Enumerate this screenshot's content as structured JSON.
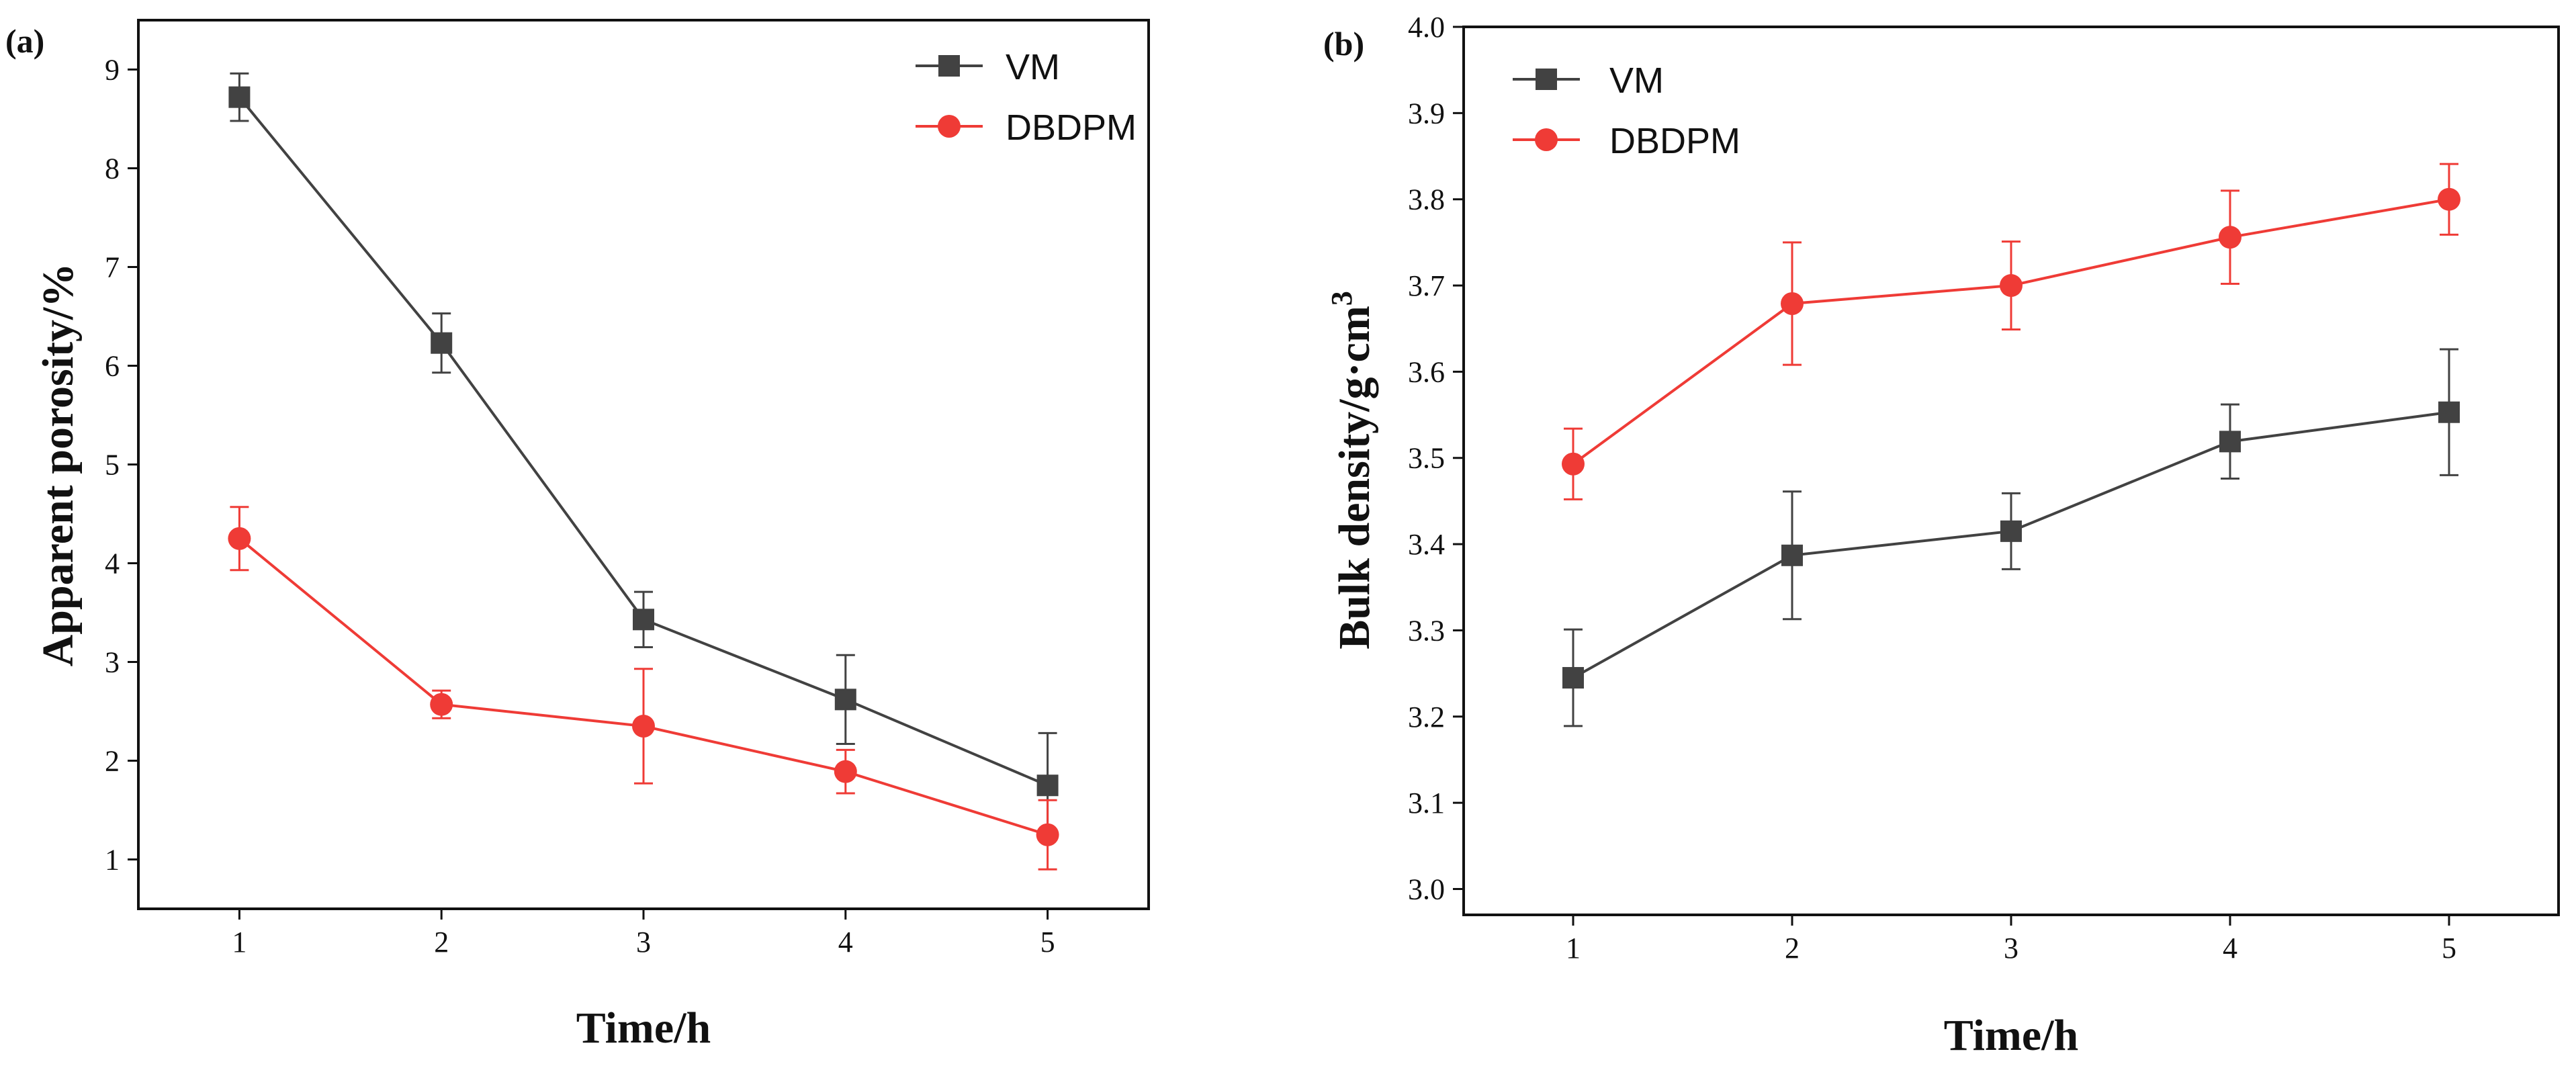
{
  "colors": {
    "vm": "#424242",
    "dbdpm": "#ef3b36",
    "axis": "#111111"
  },
  "chart_data": [
    {
      "panel_label": "(a)",
      "type": "line",
      "title": "",
      "xlabel": "Time/h",
      "ylabel": "Apparent porosity/%",
      "xlim": [
        0.5,
        5.5
      ],
      "ylim": [
        0.5,
        9.5
      ],
      "x_ticks": [
        1,
        2,
        3,
        4,
        5
      ],
      "x_tick_labels": [
        "1",
        "2",
        "3",
        "4",
        "5"
      ],
      "y_ticks": [
        1,
        2,
        3,
        4,
        5,
        6,
        7,
        8,
        9
      ],
      "y_tick_labels": [
        "1",
        "2",
        "3",
        "4",
        "5",
        "6",
        "7",
        "8",
        "9"
      ],
      "legend_position": "top-right",
      "grid": false,
      "series": [
        {
          "name": "VM",
          "color": "#424242",
          "marker": "square",
          "x": [
            1,
            2,
            3,
            4,
            5
          ],
          "values": [
            8.72,
            6.23,
            3.43,
            2.62,
            1.75
          ],
          "errors": [
            0.24,
            0.3,
            0.28,
            0.45,
            0.53
          ]
        },
        {
          "name": "DBDPM",
          "color": "#ef3b36",
          "marker": "circle",
          "x": [
            1,
            2,
            3,
            4,
            5
          ],
          "values": [
            4.25,
            2.57,
            2.35,
            1.89,
            1.25
          ],
          "errors": [
            0.32,
            0.14,
            0.58,
            0.22,
            0.35
          ]
        }
      ]
    },
    {
      "panel_label": "(b)",
      "type": "line",
      "title": "",
      "xlabel": "Time/h",
      "ylabel": "Bulk density/g·cm",
      "ylabel_sup": "3",
      "xlim": [
        0.5,
        5.5
      ],
      "ylim": [
        2.97,
        4.0
      ],
      "x_ticks": [
        1,
        2,
        3,
        4,
        5
      ],
      "x_tick_labels": [
        "1",
        "2",
        "3",
        "4",
        "5"
      ],
      "y_ticks": [
        3.0,
        3.1,
        3.2,
        3.3,
        3.4,
        3.5,
        3.6,
        3.7,
        3.8,
        3.9,
        4.0
      ],
      "y_tick_labels": [
        "3.0",
        "3.1",
        "3.2",
        "3.3",
        "3.4",
        "3.5",
        "3.6",
        "3.7",
        "3.8",
        "3.9",
        "4.0"
      ],
      "legend_position": "top-left",
      "grid": false,
      "series": [
        {
          "name": "VM",
          "color": "#424242",
          "marker": "square",
          "x": [
            1,
            2,
            3,
            4,
            5
          ],
          "values": [
            3.245,
            3.387,
            3.415,
            3.519,
            3.553
          ],
          "errors": [
            0.056,
            0.074,
            0.044,
            0.043,
            0.073
          ]
        },
        {
          "name": "DBDPM",
          "color": "#ef3b36",
          "marker": "circle",
          "x": [
            1,
            2,
            3,
            4,
            5
          ],
          "values": [
            3.493,
            3.679,
            3.7,
            3.756,
            3.8
          ],
          "errors": [
            0.041,
            0.071,
            0.051,
            0.054,
            0.041
          ]
        }
      ]
    }
  ]
}
